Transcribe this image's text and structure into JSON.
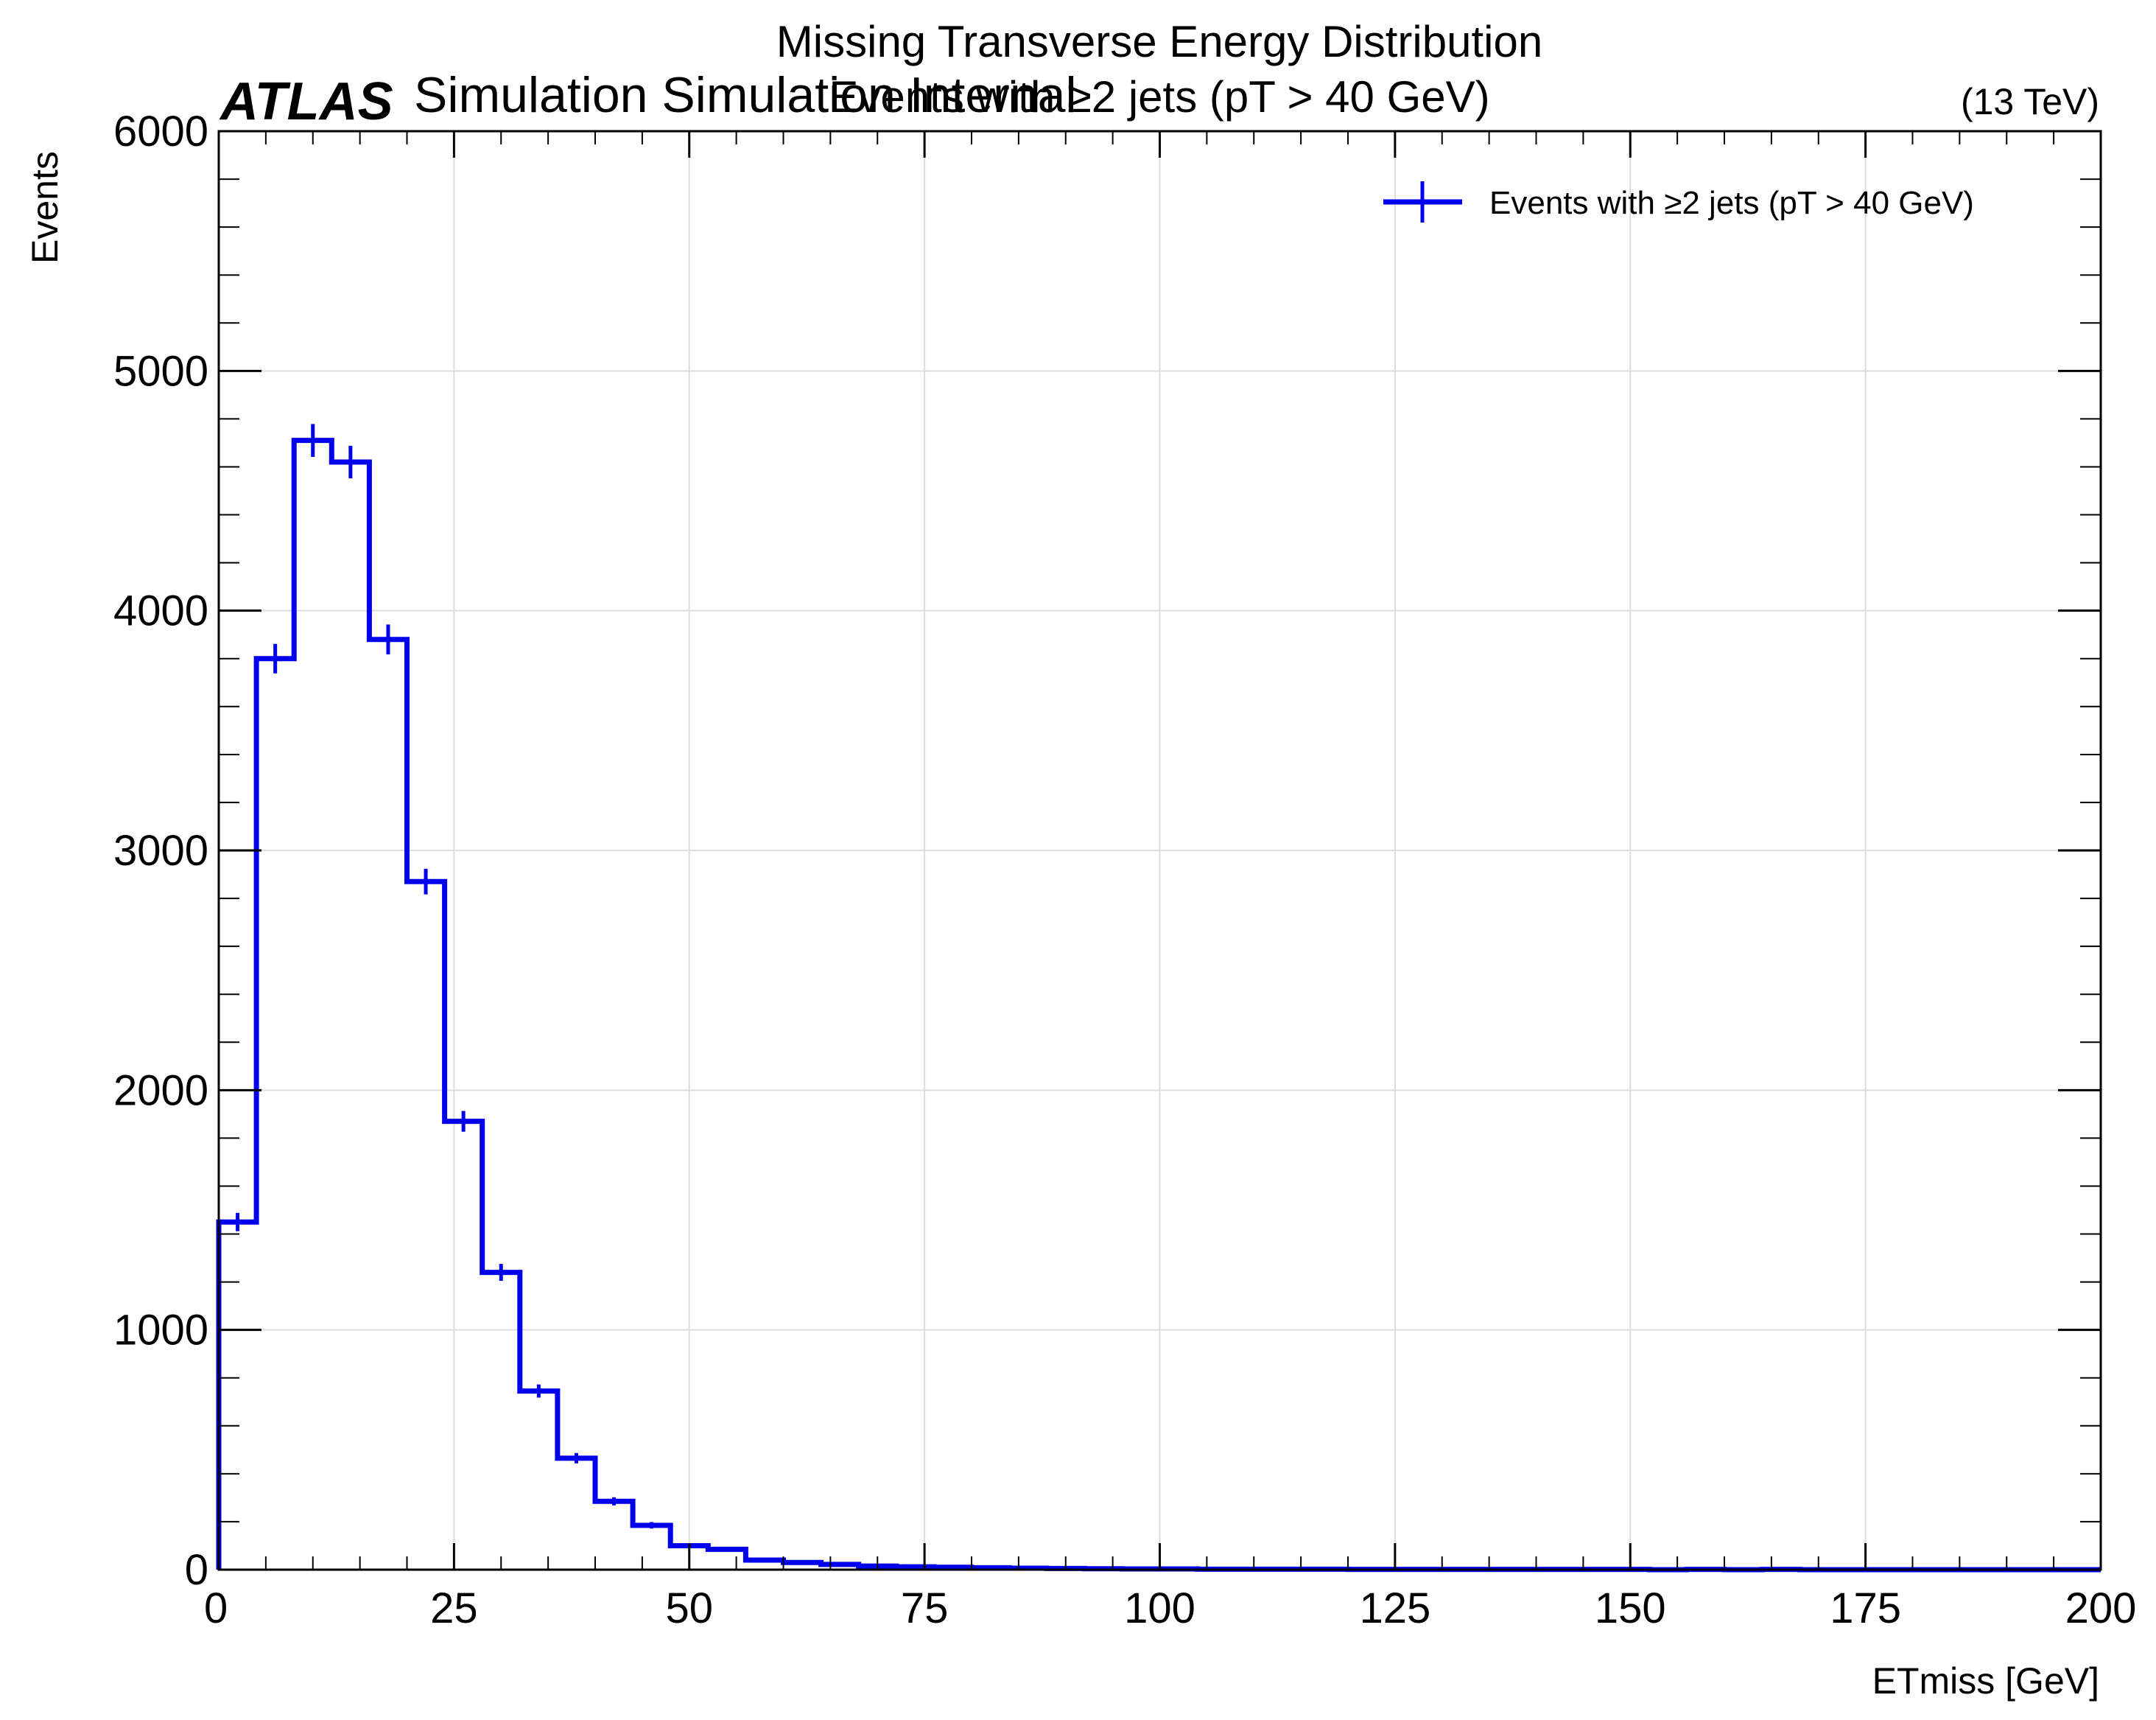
{
  "chart_data": {
    "type": "histogram",
    "title": "Missing Transverse Energy Distribution",
    "subtitle": "Events with ≥2 jets (pT > 40 GeV)",
    "experiment_label": "ATLAS",
    "experiment_sublabel": "Simulation Simulation Internal",
    "energy_label": "(13 TeV)",
    "xlabel": "ETmiss [GeV]",
    "ylabel": "Events",
    "xlim": [
      0,
      200
    ],
    "ylim": [
      0,
      6000
    ],
    "grid": true,
    "legend_position": "top-right",
    "x_ticks": [
      0,
      25,
      50,
      75,
      100,
      125,
      150,
      175,
      200
    ],
    "y_ticks": [
      0,
      1000,
      2000,
      3000,
      4000,
      5000,
      6000
    ],
    "bin_width": 4,
    "series": [
      {
        "name": "Events with ≥2 jets (pT > 40 GeV)",
        "color": "#0000ee",
        "bin_edges": [
          0,
          4,
          8,
          12,
          16,
          20,
          24,
          28,
          32,
          36,
          40,
          44,
          48,
          52,
          56,
          60,
          64,
          68,
          72,
          76,
          80,
          84,
          88,
          92,
          96,
          100,
          104,
          108,
          112,
          116,
          120,
          124,
          128,
          132,
          136,
          140,
          144,
          148,
          152,
          156,
          160,
          164,
          168,
          172,
          176,
          180,
          184,
          188,
          192,
          196,
          200
        ],
        "values": [
          1450,
          3800,
          4710,
          4620,
          3880,
          2870,
          1870,
          1240,
          745,
          465,
          285,
          185,
          100,
          85,
          40,
          30,
          22,
          15,
          12,
          10,
          8,
          6,
          5,
          4,
          3,
          3,
          2,
          2,
          2,
          2,
          1,
          1,
          1,
          1,
          1,
          1,
          1,
          1,
          0,
          1,
          0,
          1,
          0,
          0,
          0,
          0,
          0,
          0,
          0,
          0
        ]
      }
    ]
  }
}
